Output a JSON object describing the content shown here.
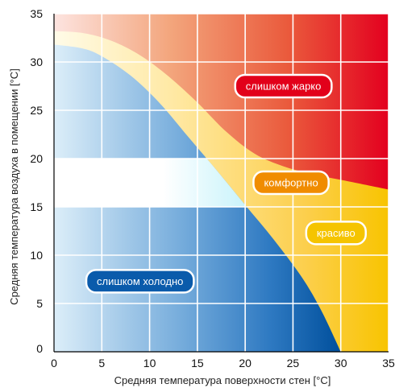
{
  "chart_data": {
    "type": "area",
    "xlabel": "Средняя температура поверхности стен [°C]",
    "ylabel": "Средняя температура воздуха в помещении [°C]",
    "xlim": [
      0,
      35
    ],
    "ylim": [
      0,
      35
    ],
    "x_ticks": [
      "0",
      "5",
      "10",
      "15",
      "20",
      "25",
      "30",
      "35"
    ],
    "y_ticks": [
      "0",
      "5",
      "10",
      "15",
      "20",
      "25",
      "30",
      "35"
    ],
    "grid": true,
    "comfort_band": {
      "x_range": [
        0,
        20
      ],
      "y_range": [
        15,
        20
      ],
      "color": "#ffffff"
    },
    "boundaries": [
      {
        "id": "cold_boundary",
        "x": [
          0,
          3,
          5,
          8,
          11,
          14,
          17,
          20,
          23,
          26,
          28,
          30
        ],
        "y": [
          31.8,
          31.4,
          30.6,
          28.6,
          25.8,
          22.3,
          18.8,
          15.2,
          11.6,
          7.6,
          4.2,
          0
        ]
      },
      {
        "id": "hot_boundary",
        "x": [
          0,
          3,
          6,
          9,
          12,
          15,
          18,
          21,
          24,
          27,
          30,
          33,
          35
        ],
        "y": [
          33.2,
          33,
          32.2,
          30.7,
          28.5,
          25.8,
          22.8,
          20.5,
          19.2,
          18.4,
          17.8,
          17.2,
          16.8
        ]
      }
    ],
    "zones": [
      {
        "id": "too_hot",
        "label": "слишком жарко",
        "x": 24,
        "y": 27.5,
        "color": "#e2001a"
      },
      {
        "id": "comfortable",
        "label": "комфортно",
        "x": 24.8,
        "y": 17.5,
        "color": "#f08c00"
      },
      {
        "id": "acceptable",
        "label": "красиво",
        "x": 29.5,
        "y": 12.3,
        "color": "#f5c400"
      },
      {
        "id": "too_cold",
        "label": "слишком холодно",
        "x": 9,
        "y": 7.3,
        "color": "#0a5bab"
      }
    ]
  }
}
